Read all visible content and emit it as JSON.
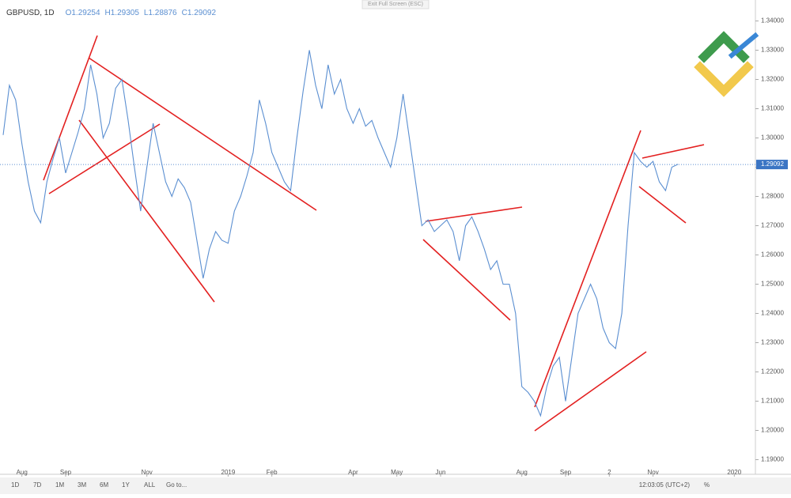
{
  "header": {
    "symbol": "GBPUSD, 1D",
    "ohlc": [
      {
        "key": "O",
        "value": "1.29254"
      },
      {
        "key": "H",
        "value": "1.29305"
      },
      {
        "key": "L",
        "value": "1.28876"
      },
      {
        "key": "C",
        "value": "1.29092"
      }
    ],
    "exit_button": "Exit Full Screen (ESC)"
  },
  "toolbar": {
    "ranges": [
      "1D",
      "7D",
      "1M",
      "3M",
      "6M",
      "1Y",
      "ALL"
    ],
    "goto": "Go to...",
    "clock": "12:03:05 (UTC+2)",
    "percent": "%"
  },
  "chart_data": {
    "type": "line",
    "categories": [
      null,
      null,
      null,
      "Aug",
      null,
      null,
      null,
      null,
      null,
      null,
      "Sep",
      null,
      null,
      null,
      null,
      null,
      null,
      null,
      null,
      null,
      null,
      null,
      null,
      "Nov",
      null,
      null,
      null,
      null,
      null,
      null,
      null,
      null,
      null,
      null,
      null,
      null,
      "2019",
      null,
      null,
      null,
      null,
      null,
      null,
      "Feb",
      null,
      null,
      null,
      null,
      null,
      null,
      null,
      null,
      null,
      null,
      null,
      null,
      "Apr",
      null,
      null,
      null,
      null,
      null,
      null,
      "May",
      null,
      null,
      null,
      null,
      null,
      null,
      "Jun",
      null,
      null,
      null,
      null,
      null,
      null,
      null,
      null,
      null,
      null,
      null,
      null,
      "Aug",
      null,
      null,
      null,
      null,
      null,
      null,
      "Sep",
      null,
      null,
      null,
      null,
      null,
      null,
      "2",
      null,
      null,
      null,
      null,
      null,
      null,
      "Nov",
      null,
      null,
      null,
      null,
      null,
      null,
      null,
      null,
      null,
      null,
      null,
      null,
      "2020",
      null,
      null
    ],
    "series": [
      {
        "name": "GBPUSD",
        "color": "#5b8fd1",
        "values": [
          1.301,
          1.318,
          1.313,
          1.298,
          1.285,
          1.275,
          1.271,
          1.285,
          1.293,
          1.3,
          1.288,
          1.295,
          1.302,
          1.31,
          1.325,
          1.315,
          1.3,
          1.305,
          1.317,
          1.32,
          1.306,
          1.29,
          1.275,
          1.29,
          1.305,
          1.295,
          1.285,
          1.28,
          1.286,
          1.283,
          1.278,
          1.265,
          1.252,
          1.262,
          1.268,
          1.265,
          1.264,
          1.275,
          1.28,
          1.287,
          1.295,
          1.313,
          1.305,
          1.295,
          1.29,
          1.285,
          1.282,
          1.3,
          1.316,
          1.33,
          1.318,
          1.31,
          1.325,
          1.315,
          1.32,
          1.31,
          1.305,
          1.31,
          1.304,
          1.306,
          1.3,
          1.295,
          1.29,
          1.3,
          1.315,
          1.3,
          1.285,
          1.27,
          1.272,
          1.268,
          1.27,
          1.272,
          1.268,
          1.258,
          1.27,
          1.273,
          1.268,
          1.262,
          1.255,
          1.258,
          1.25,
          1.25,
          1.24,
          1.215,
          1.213,
          1.21,
          1.205,
          1.215,
          1.222,
          1.225,
          1.21,
          1.225,
          1.24,
          1.245,
          1.25,
          1.245,
          1.235,
          1.23,
          1.228,
          1.24,
          1.27,
          1.295,
          1.292,
          1.29,
          1.292,
          1.285,
          1.282,
          1.29,
          1.291,
          null,
          null,
          null,
          null,
          null,
          null,
          null,
          null,
          null,
          null,
          null
        ]
      }
    ],
    "last_price": {
      "value": 1.29092,
      "label": "1.29092"
    },
    "ylim": [
      1.185,
      1.345
    ],
    "yticks": [
      {
        "value": 1.19,
        "label": "1.19000"
      },
      {
        "value": 1.2,
        "label": "1.20000"
      },
      {
        "value": 1.21,
        "label": "1.21000"
      },
      {
        "value": 1.22,
        "label": "1.22000"
      },
      {
        "value": 1.23,
        "label": "1.23000"
      },
      {
        "value": 1.24,
        "label": "1.24000"
      },
      {
        "value": 1.25,
        "label": "1.25000"
      },
      {
        "value": 1.26,
        "label": "1.26000"
      },
      {
        "value": 1.27,
        "label": "1.27000"
      },
      {
        "value": 1.28,
        "label": "1.28000"
      },
      {
        "value": 1.29,
        "label": "1.29000"
      },
      {
        "value": 1.3,
        "label": "1.30000"
      },
      {
        "value": 1.31,
        "label": "1.31000"
      },
      {
        "value": 1.32,
        "label": "1.32000"
      },
      {
        "value": 1.33,
        "label": "1.33000"
      },
      {
        "value": 1.34,
        "label": "1.34000"
      }
    ],
    "grid": false
  }
}
